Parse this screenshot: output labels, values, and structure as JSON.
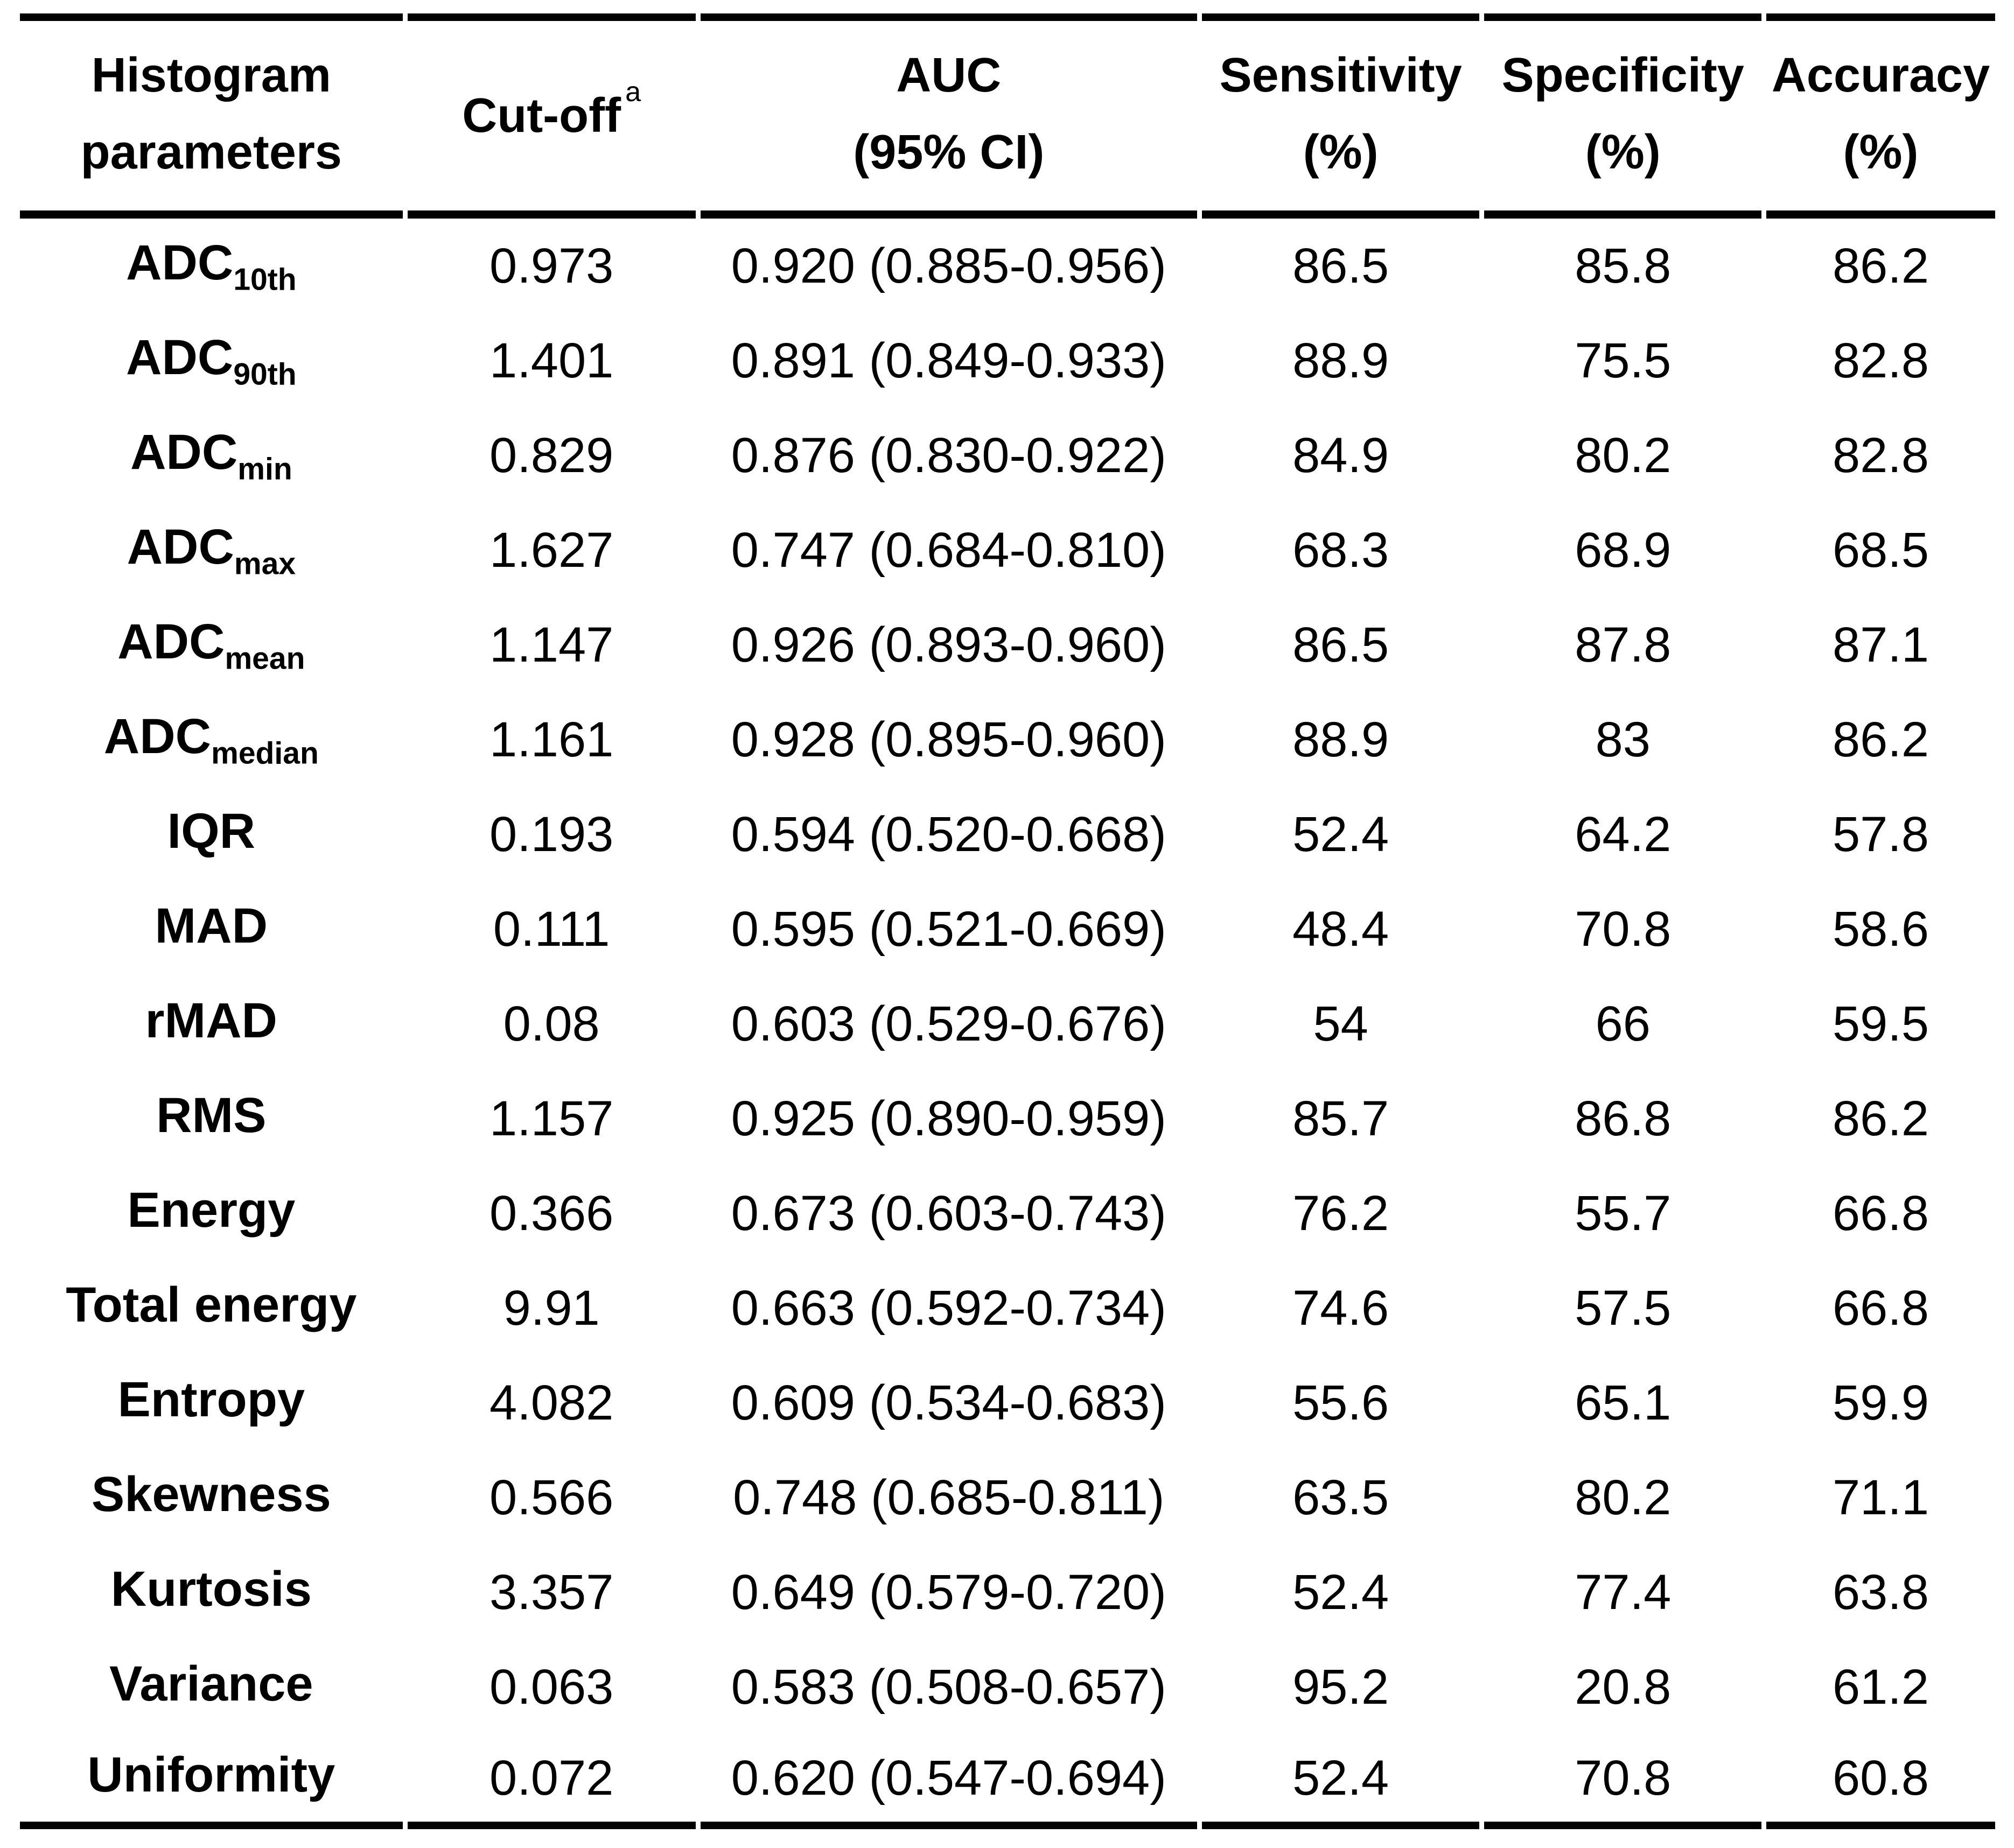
{
  "colors": {
    "text": "#000000",
    "background": "#ffffff",
    "rule": "#000000"
  },
  "table": {
    "headers": {
      "param": {
        "line1": "Histogram",
        "line2": "parameters"
      },
      "cutoff": {
        "label": "Cut-off",
        "superscript": "a"
      },
      "auc": {
        "line1": "AUC",
        "line2": "(95% CI)"
      },
      "sensitivity": {
        "line1": "Sensitivity",
        "line2": "(%)"
      },
      "specificity": {
        "line1": "Specificity",
        "line2": "(%)"
      },
      "accuracy": {
        "line1": "Accuracy",
        "line2": "(%)"
      }
    },
    "rows": [
      {
        "param_base": "ADC",
        "param_sub": "10th",
        "cutoff": "0.973",
        "auc": "0.920 (0.885-0.956)",
        "sensitivity": "86.5",
        "specificity": "85.8",
        "accuracy": "86.2"
      },
      {
        "param_base": "ADC",
        "param_sub": "90th",
        "cutoff": "1.401",
        "auc": "0.891 (0.849-0.933)",
        "sensitivity": "88.9",
        "specificity": "75.5",
        "accuracy": "82.8"
      },
      {
        "param_base": "ADC",
        "param_sub": "min",
        "cutoff": "0.829",
        "auc": "0.876 (0.830-0.922)",
        "sensitivity": "84.9",
        "specificity": "80.2",
        "accuracy": "82.8"
      },
      {
        "param_base": "ADC",
        "param_sub": "max",
        "cutoff": "1.627",
        "auc": "0.747 (0.684-0.810)",
        "sensitivity": "68.3",
        "specificity": "68.9",
        "accuracy": "68.5"
      },
      {
        "param_base": "ADC",
        "param_sub": "mean",
        "cutoff": "1.147",
        "auc": "0.926 (0.893-0.960)",
        "sensitivity": "86.5",
        "specificity": "87.8",
        "accuracy": "87.1"
      },
      {
        "param_base": "ADC",
        "param_sub": "median",
        "cutoff": "1.161",
        "auc": "0.928 (0.895-0.960)",
        "sensitivity": "88.9",
        "specificity": "83",
        "accuracy": "86.2"
      },
      {
        "param_base": "IQR",
        "param_sub": "",
        "cutoff": "0.193",
        "auc": "0.594 (0.520-0.668)",
        "sensitivity": "52.4",
        "specificity": "64.2",
        "accuracy": "57.8"
      },
      {
        "param_base": "MAD",
        "param_sub": "",
        "cutoff": "0.111",
        "auc": "0.595 (0.521-0.669)",
        "sensitivity": "48.4",
        "specificity": "70.8",
        "accuracy": "58.6"
      },
      {
        "param_base": "rMAD",
        "param_sub": "",
        "cutoff": "0.08",
        "auc": "0.603 (0.529-0.676)",
        "sensitivity": "54",
        "specificity": "66",
        "accuracy": "59.5"
      },
      {
        "param_base": "RMS",
        "param_sub": "",
        "cutoff": "1.157",
        "auc": "0.925 (0.890-0.959)",
        "sensitivity": "85.7",
        "specificity": "86.8",
        "accuracy": "86.2"
      },
      {
        "param_base": "Energy",
        "param_sub": "",
        "cutoff": "0.366",
        "auc": "0.673 (0.603-0.743)",
        "sensitivity": "76.2",
        "specificity": "55.7",
        "accuracy": "66.8"
      },
      {
        "param_base": "Total energy",
        "param_sub": "",
        "cutoff": "9.91",
        "auc": "0.663 (0.592-0.734)",
        "sensitivity": "74.6",
        "specificity": "57.5",
        "accuracy": "66.8"
      },
      {
        "param_base": "Entropy",
        "param_sub": "",
        "cutoff": "4.082",
        "auc": "0.609 (0.534-0.683)",
        "sensitivity": "55.6",
        "specificity": "65.1",
        "accuracy": "59.9"
      },
      {
        "param_base": "Skewness",
        "param_sub": "",
        "cutoff": "0.566",
        "auc": "0.748 (0.685-0.811)",
        "sensitivity": "63.5",
        "specificity": "80.2",
        "accuracy": "71.1"
      },
      {
        "param_base": "Kurtosis",
        "param_sub": "",
        "cutoff": "3.357",
        "auc": "0.649 (0.579-0.720)",
        "sensitivity": "52.4",
        "specificity": "77.4",
        "accuracy": "63.8"
      },
      {
        "param_base": "Variance",
        "param_sub": "",
        "cutoff": "0.063",
        "auc": "0.583 (0.508-0.657)",
        "sensitivity": "95.2",
        "specificity": "20.8",
        "accuracy": "61.2"
      },
      {
        "param_base": "Uniformity",
        "param_sub": "",
        "cutoff": "0.072",
        "auc": "0.620 (0.547-0.694)",
        "sensitivity": "52.4",
        "specificity": "70.8",
        "accuracy": "60.8"
      }
    ]
  }
}
